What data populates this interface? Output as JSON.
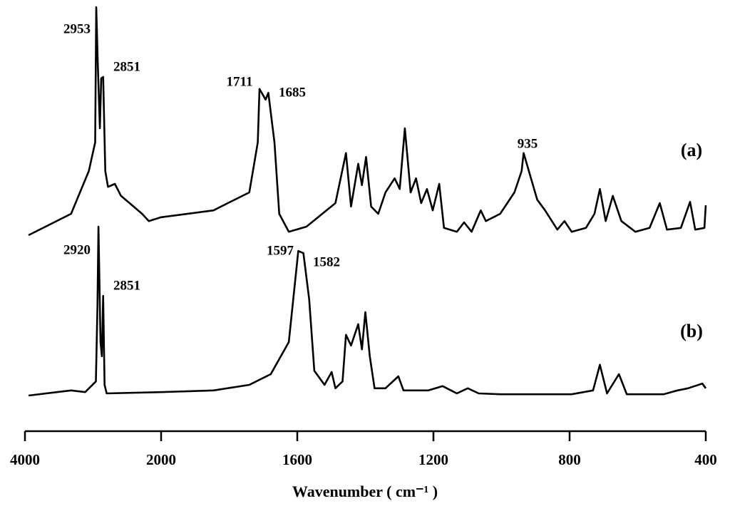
{
  "chart_data": {
    "type": "line",
    "xlabel": "Wavenumber ( cm⁻¹ )",
    "xlim": [
      4000,
      400
    ],
    "xticks": [
      4000,
      2000,
      1600,
      1200,
      800,
      400
    ],
    "ylim": [
      0,
      100
    ],
    "annotations": [
      "2953",
      "2851",
      "1711",
      "1685",
      "935",
      "2920",
      "2851",
      "1597",
      "1582"
    ],
    "series": [
      {
        "name": "(a)",
        "color": "#000000",
        "x": [
          3948,
          3323,
          3062,
          2969,
          2953,
          2930,
          2900,
          2880,
          2851,
          2820,
          2780,
          2680,
          2590,
          2280,
          2180,
          2000,
          1846,
          1804,
          1741,
          1716,
          1711,
          1693,
          1685,
          1667,
          1653,
          1625,
          1573,
          1488,
          1457,
          1442,
          1421,
          1410,
          1398,
          1383,
          1362,
          1341,
          1314,
          1299,
          1284,
          1267,
          1251,
          1236,
          1219,
          1202,
          1183,
          1169,
          1131,
          1110,
          1088,
          1061,
          1046,
          1004,
          962,
          941,
          935,
          895,
          872,
          836,
          815,
          794,
          752,
          727,
          711,
          694,
          673,
          648,
          607,
          565,
          535,
          514,
          473,
          446,
          431,
          404,
          400
        ],
        "values": [
          45,
          50,
          60,
          66.7,
          98.3,
          85,
          70,
          81.7,
          82,
          60,
          56.3,
          57,
          54.2,
          50,
          48.3,
          49.2,
          50.8,
          52.5,
          55,
          66.7,
          79.2,
          76.7,
          78.3,
          66.7,
          50,
          45.8,
          47,
          52.5,
          64.2,
          51.7,
          61.7,
          56.7,
          63.3,
          51.7,
          50,
          55,
          58.3,
          55.8,
          70,
          55,
          58.3,
          52.5,
          55.8,
          50.8,
          57,
          46.7,
          45.8,
          48,
          45.8,
          50.8,
          48.3,
          50,
          55,
          60,
          64.2,
          53.3,
          50.8,
          46.3,
          48.3,
          45.8,
          46.7,
          50,
          55.8,
          48.3,
          54.2,
          48.3,
          45.8,
          46.7,
          52.5,
          46.3,
          46.7,
          52.8,
          46.3,
          46.7,
          52
        ]
      },
      {
        "name": "(b)",
        "color": "#000000",
        "x": [
          3948,
          3531,
          3323,
          3115,
          2958,
          2935,
          2920,
          2890,
          2870,
          2851,
          2830,
          2800,
          2000,
          1846,
          1741,
          1678,
          1625,
          1597,
          1582,
          1565,
          1550,
          1520,
          1499,
          1488,
          1467,
          1457,
          1442,
          1421,
          1410,
          1400,
          1387,
          1373,
          1341,
          1303,
          1288,
          1215,
          1173,
          1131,
          1099,
          1067,
          1004,
          794,
          731,
          711,
          690,
          655,
          632,
          524,
          483,
          452,
          410,
          400
        ],
        "values": [
          7.5,
          8.3,
          8.7,
          8.3,
          10.8,
          28.3,
          47,
          20,
          16.7,
          30.8,
          10,
          8,
          8.3,
          8.7,
          10,
          12.5,
          20,
          41.3,
          40.8,
          30,
          13.3,
          10,
          13,
          9.2,
          10.8,
          21.7,
          19.2,
          24.2,
          18.3,
          27,
          16.7,
          9.2,
          9.2,
          12,
          8.7,
          8.7,
          9.7,
          8,
          9.2,
          8,
          7.8,
          7.8,
          8.7,
          14.7,
          8,
          12.5,
          7.8,
          7.8,
          8.7,
          9.2,
          10.3,
          9.2
        ]
      }
    ]
  }
}
